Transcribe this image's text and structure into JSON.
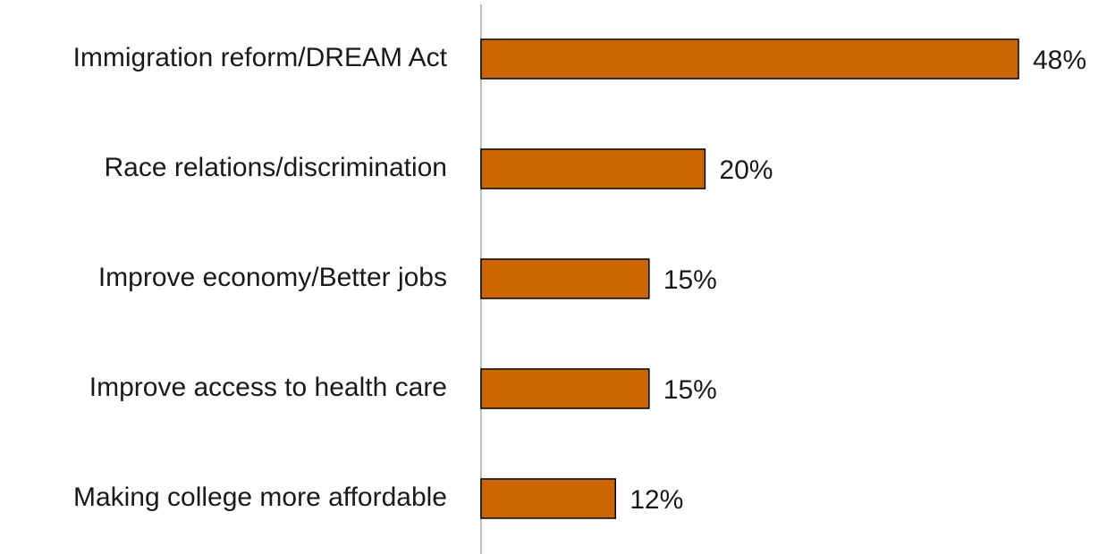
{
  "chart_data": {
    "type": "bar",
    "categories": [
      "Immigration reform/DREAM Act",
      "Race relations/discrimination",
      "Improve economy/Better jobs",
      "Improve access to health care",
      "Making college more affordable"
    ],
    "values": [
      48,
      20,
      15,
      15,
      12
    ],
    "value_labels": [
      "48%",
      "20%",
      "15%",
      "15%",
      "12%"
    ],
    "color": "#cc6600"
  }
}
